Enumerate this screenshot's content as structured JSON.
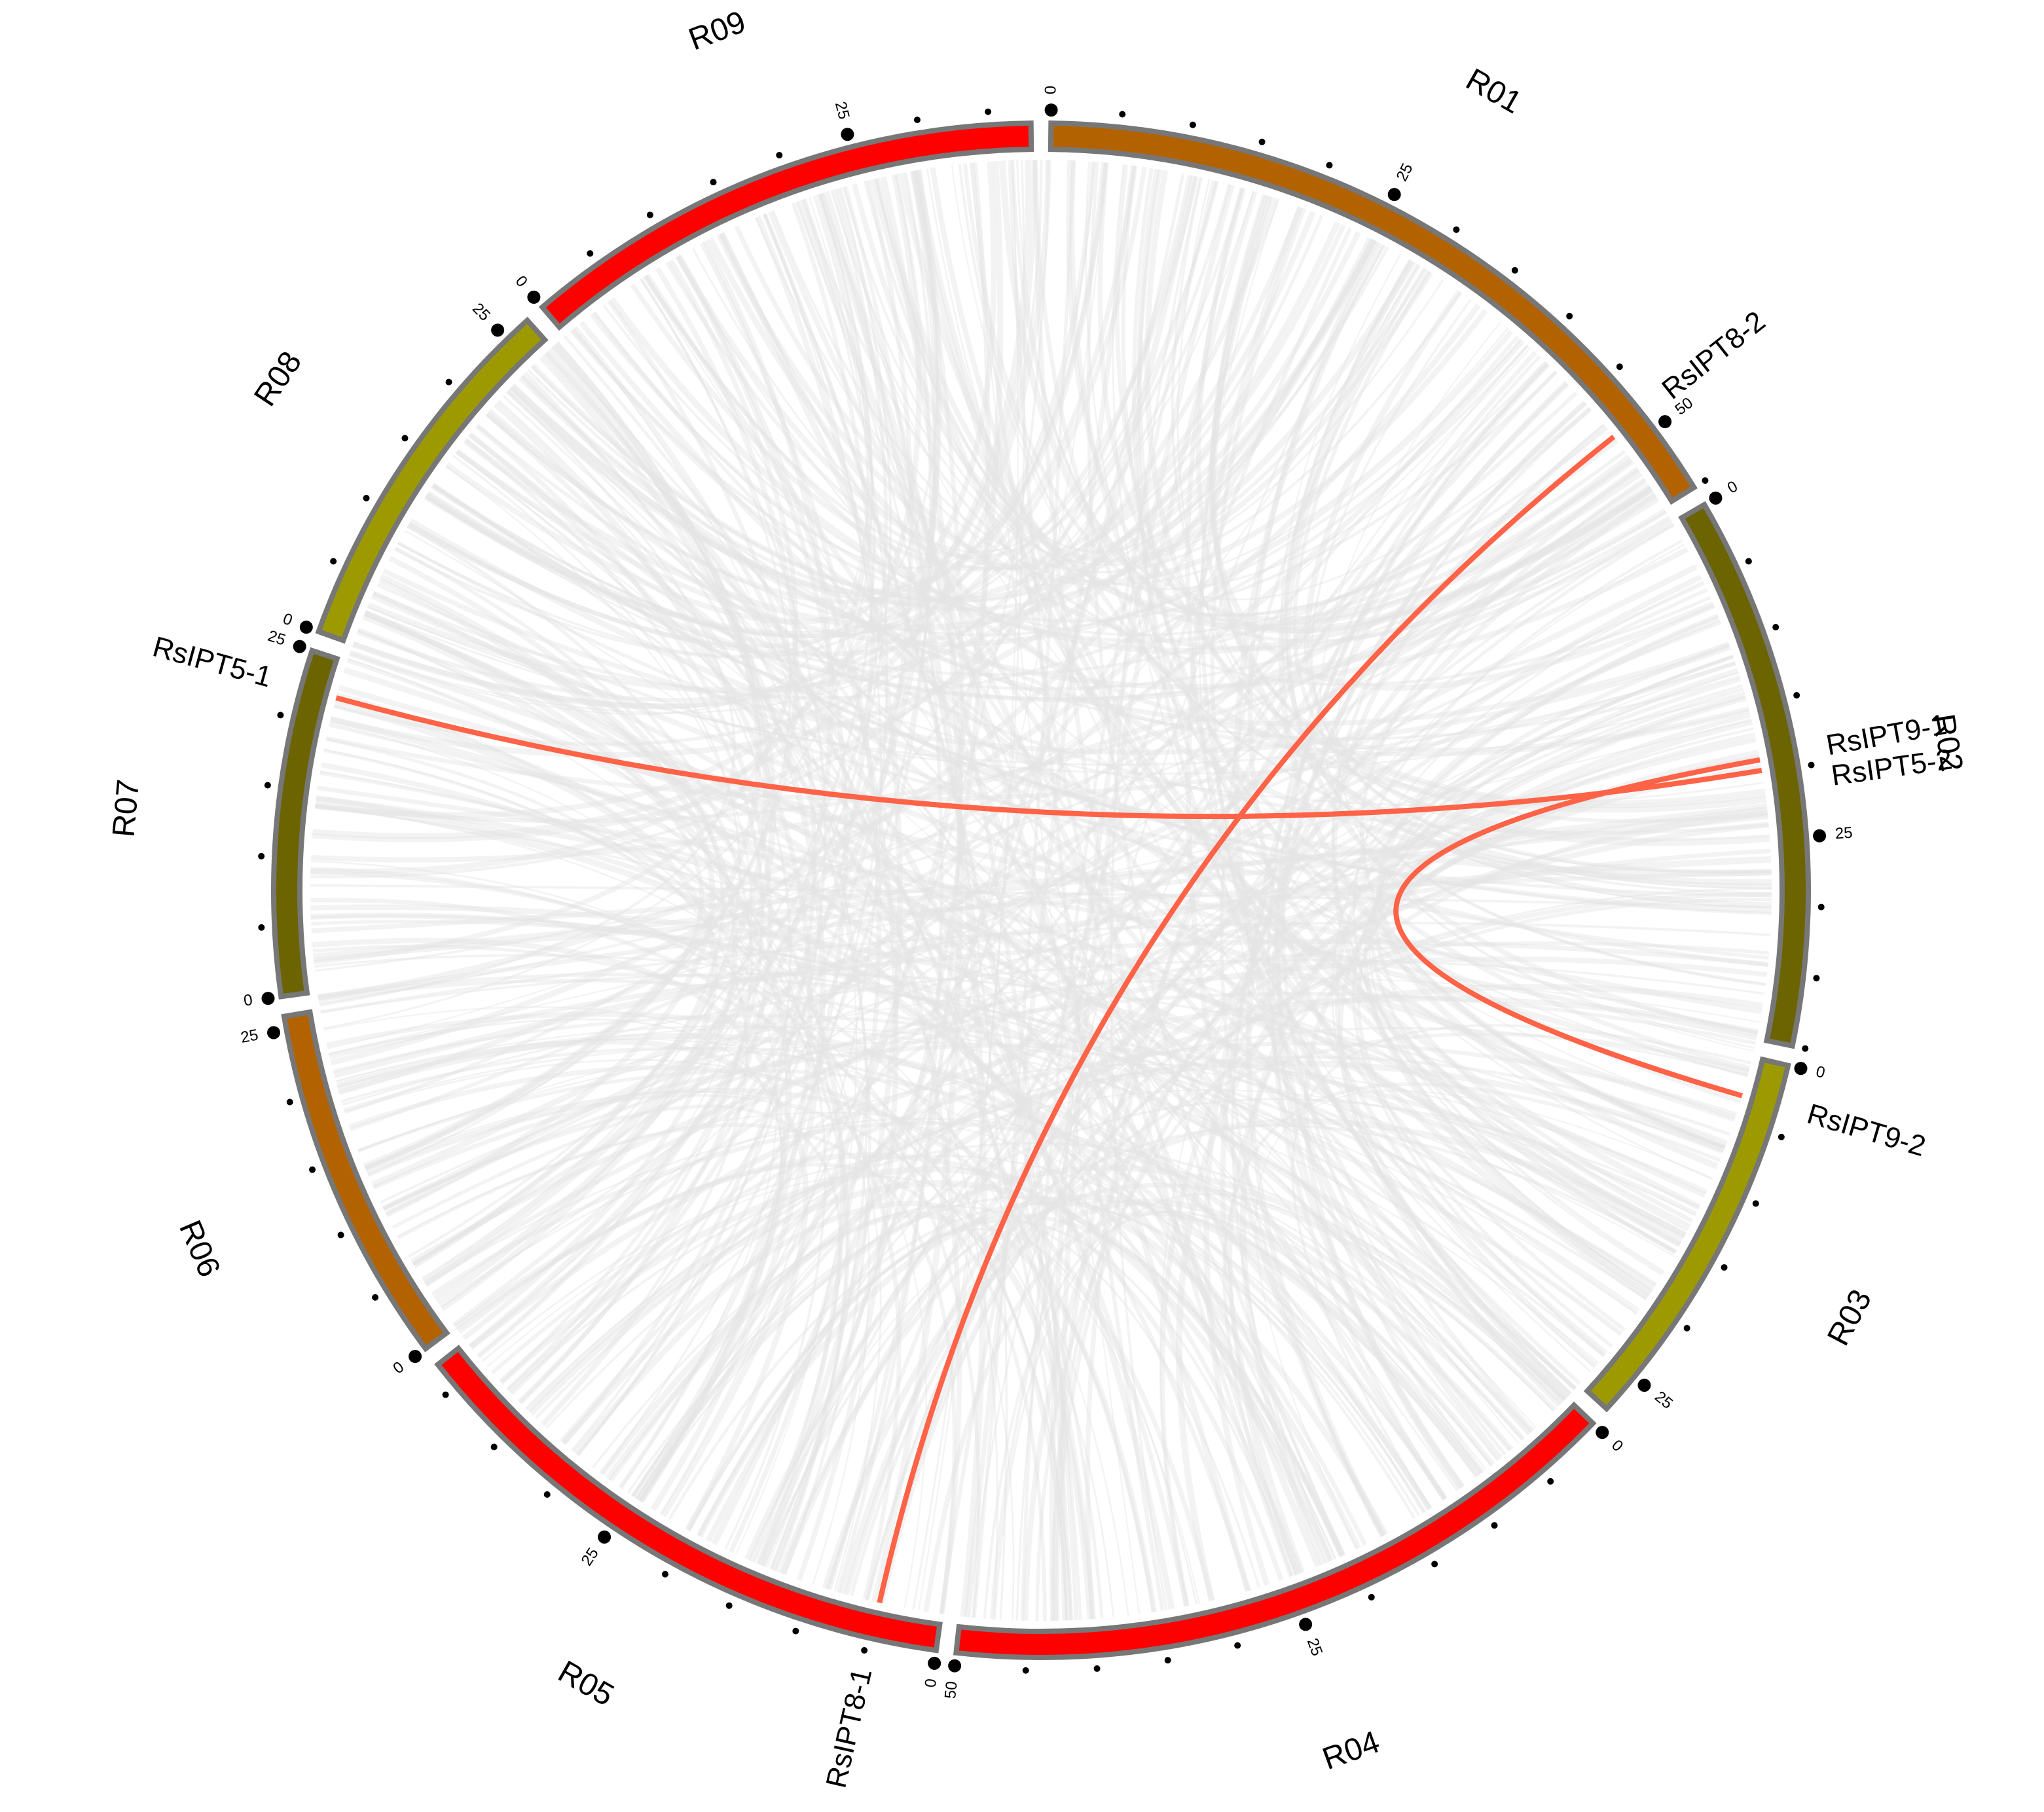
{
  "chart_data": {
    "type": "chord",
    "chromosomes": [
      {
        "name": "R01",
        "length": 55,
        "color": "#b36200"
      },
      {
        "name": "R02",
        "length": 40,
        "color": "#6b6400"
      },
      {
        "name": "R03",
        "length": 28,
        "color": "#9c9a00"
      },
      {
        "name": "R04",
        "length": 50,
        "color": "#ff0000"
      },
      {
        "name": "R05",
        "length": 42,
        "color": "#ff0000"
      },
      {
        "name": "R06",
        "length": 26,
        "color": "#b36200"
      },
      {
        "name": "R07",
        "length": 25,
        "color": "#6b6400"
      },
      {
        "name": "R08",
        "length": 27,
        "color": "#9c9a00"
      },
      {
        "name": "R09",
        "length": 38,
        "color": "#ff0000"
      }
    ],
    "ticks": [
      0,
      25,
      50
    ],
    "minor_tick_step": 5,
    "genes": [
      {
        "name": "RsIPT8-2",
        "chromosome": "R01",
        "position": 48.6
      },
      {
        "name": "RsIPT9-1",
        "chromosome": "R02",
        "position": 19.0
      },
      {
        "name": "RsIPT5-2",
        "chromosome": "R02",
        "position": 19.8
      },
      {
        "name": "RsIPT9-2",
        "chromosome": "R03",
        "position": 3.0
      },
      {
        "name": "RsIPT8-1",
        "chromosome": "R05",
        "position": 4.7
      },
      {
        "name": "RsIPT5-1",
        "chromosome": "R07",
        "position": 22.2
      }
    ],
    "links": [
      {
        "source": "RsIPT8-2",
        "target": "RsIPT8-1"
      },
      {
        "source": "RsIPT5-1",
        "target": "RsIPT5-2"
      },
      {
        "source": "RsIPT9-1",
        "target": "RsIPT9-2"
      }
    ],
    "link_color": "#ff6347",
    "ideogram_border_color": "#777777"
  }
}
